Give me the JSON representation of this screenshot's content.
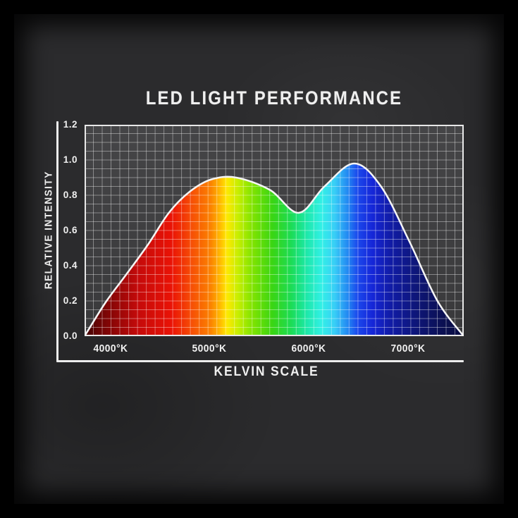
{
  "title": "LED LIGHT PERFORMANCE",
  "x_axis": {
    "label": "KELVIN SCALE",
    "ticks": [
      {
        "label": "4000°K",
        "value": 4000
      },
      {
        "label": "5000°K",
        "value": 5000
      },
      {
        "label": "6000°K",
        "value": 6000
      },
      {
        "label": "7000°K",
        "value": 7000
      }
    ]
  },
  "y_axis": {
    "label": "RELATIVE INTENSITY",
    "ticks": [
      {
        "label": "1.2",
        "value": 1.2
      },
      {
        "label": "1.0",
        "value": 1.0
      },
      {
        "label": "0.8",
        "value": 0.8
      },
      {
        "label": "0.6",
        "value": 0.6
      },
      {
        "label": "0.4",
        "value": 0.4
      },
      {
        "label": "0.2",
        "value": 0.2
      },
      {
        "label": "0.0",
        "value": 0.0
      }
    ]
  },
  "chart_data": {
    "type": "area",
    "title": "LED LIGHT PERFORMANCE",
    "xlabel": "KELVIN SCALE",
    "ylabel": "RELATIVE INTENSITY",
    "xlim": [
      3740,
      7565
    ],
    "ylim": [
      0,
      1.2
    ],
    "grid": {
      "on": true,
      "cols": 43,
      "rows": 24
    },
    "x_kelvin": [
      3740,
      3950,
      4160,
      4380,
      4590,
      4800,
      5020,
      5270,
      5610,
      5900,
      6160,
      6460,
      6730,
      7015,
      7300,
      7565
    ],
    "intensity": [
      0.0,
      0.19,
      0.35,
      0.52,
      0.7,
      0.82,
      0.89,
      0.9,
      0.83,
      0.7,
      0.85,
      0.98,
      0.85,
      0.54,
      0.2,
      0.0
    ],
    "features": {
      "first_peak": {
        "kelvin": 5250,
        "intensity": 0.9
      },
      "dip": {
        "kelvin": 5900,
        "intensity": 0.7
      },
      "second_peak": {
        "kelvin": 6460,
        "intensity": 0.98
      }
    },
    "spectrum_gradient": [
      {
        "at": 0.0,
        "color": "#400404"
      },
      {
        "at": 0.048,
        "color": "#750505"
      },
      {
        "at": 0.14,
        "color": "#c40a0a"
      },
      {
        "at": 0.23,
        "color": "#ea1306"
      },
      {
        "at": 0.28,
        "color": "#f64c06"
      },
      {
        "at": 0.333,
        "color": "#fb8300"
      },
      {
        "at": 0.357,
        "color": "#ffb800"
      },
      {
        "at": 0.375,
        "color": "#ffe800"
      },
      {
        "at": 0.405,
        "color": "#c6ee00"
      },
      {
        "at": 0.44,
        "color": "#84e400"
      },
      {
        "at": 0.495,
        "color": "#3ad513"
      },
      {
        "at": 0.545,
        "color": "#1cdc55"
      },
      {
        "at": 0.585,
        "color": "#1ce8a8"
      },
      {
        "at": 0.625,
        "color": "#32f0e6"
      },
      {
        "at": 0.66,
        "color": "#38cdf6"
      },
      {
        "at": 0.695,
        "color": "#2286f2"
      },
      {
        "at": 0.72,
        "color": "#1b48ec"
      },
      {
        "at": 0.76,
        "color": "#1526d8"
      },
      {
        "at": 0.805,
        "color": "#111ca8"
      },
      {
        "at": 0.875,
        "color": "#0e1678"
      },
      {
        "at": 0.95,
        "color": "#0b1050"
      },
      {
        "at": 1.0,
        "color": "#0a0d42"
      }
    ]
  },
  "colors": {
    "frame": "#000000",
    "background": "#2b2b2d",
    "plot_background_top": "#454547",
    "plot_background_bottom": "#39393b",
    "grid_line": "rgba(255,255,255,0.38)",
    "plot_border": "#e8e8e8",
    "axis_line": "#ededed",
    "curve": "#f5f5f5",
    "text": "#f0f0f0"
  }
}
